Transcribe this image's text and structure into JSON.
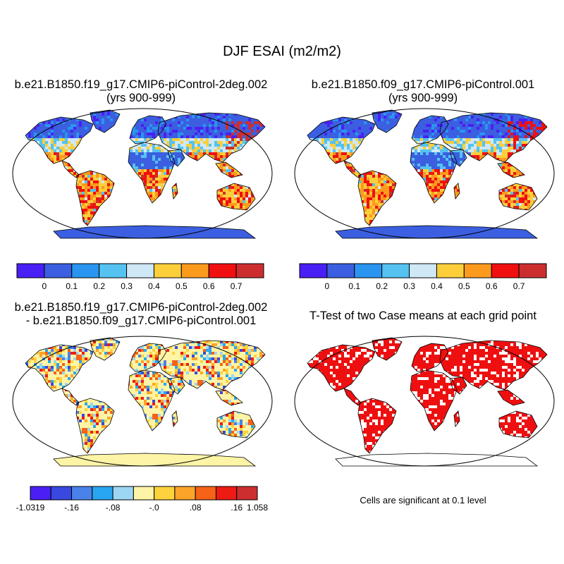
{
  "main_title": "DJF ESAI (m2/m2)",
  "panels": {
    "top_left": {
      "title_line1": "b.e21.B1850.f19_g17.CMIP6-piControl-2deg.002",
      "title_line2": "(yrs 900-999)"
    },
    "top_right": {
      "title_line1": "b.e21.B1850.f09_g17.CMIP6-piControl.001",
      "title_line2": "(yrs 900-999)"
    },
    "bottom_left": {
      "title_line1": "b.e21.B1850.f19_g17.CMIP6-piControl-2deg.002",
      "title_line2": "- b.e21.B1850.f09_g17.CMIP6-piControl.001"
    },
    "bottom_right": {
      "title_line1": "T-Test of two Case means at each grid point"
    }
  },
  "colorbar_main": {
    "colors": [
      "#4a1ff5",
      "#3b5fe0",
      "#2a95f0",
      "#55c2f2",
      "#cfe8f6",
      "#fccf3a",
      "#fc9a1e",
      "#f01010",
      "#cc2e30"
    ],
    "labels": [
      "0",
      "0.1",
      "0.2",
      "0.3",
      "0.4",
      "0.5",
      "0.6",
      "0.7"
    ]
  },
  "colorbar_diff": {
    "colors": [
      "#4a1ff5",
      "#3848e0",
      "#4a82ea",
      "#2aa6f0",
      "#9dd6f2",
      "#fdf4a6",
      "#fcd33c",
      "#fca42a",
      "#f56218",
      "#ee1a14",
      "#cc2e30"
    ],
    "labels": [
      "-1.0319",
      "-.16",
      "-.08",
      "-.0",
      ".08",
      ".16",
      "1.058"
    ]
  },
  "significance_note": "Cells are significant at 0.1 level",
  "colors": {
    "ocean": "#ffffff",
    "significant": "#ee1010",
    "frame": "#000000"
  }
}
